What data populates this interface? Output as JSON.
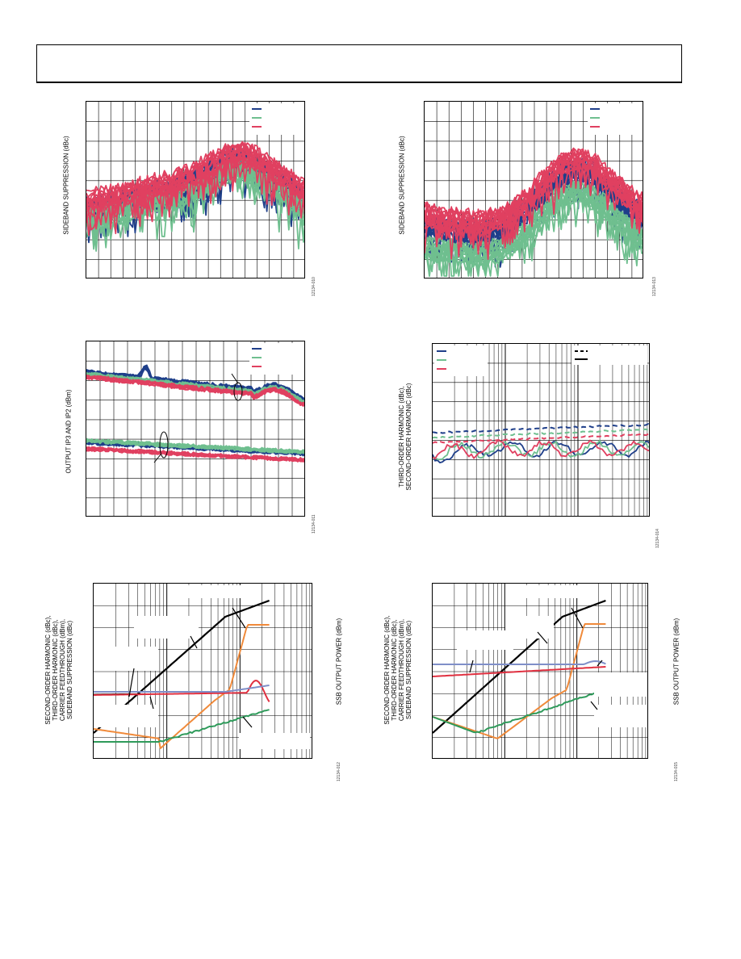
{
  "chart_data": [
    {
      "type": "line",
      "ylabel": "SIDEBAND SUPPRESSION (dBc)",
      "figure_id": "12134-010",
      "series_colors": [
        "#1f3f8a",
        "#6fbf8f",
        "#e04060"
      ]
    },
    {
      "type": "line",
      "ylabel": "SIDEBAND SUPPRESSION (dBc)",
      "figure_id": "12134-013",
      "series_colors": [
        "#1f3f8a",
        "#6fbf8f",
        "#e04060"
      ]
    },
    {
      "type": "line",
      "ylabel": "OUTPUT IP3 AND IP2 (dBm)",
      "figure_id": "12134-011",
      "series_colors": [
        "#1f3f8a",
        "#6fbf8f",
        "#e04060"
      ]
    },
    {
      "type": "line",
      "ylabel": "THIRD-ORDER HARMONIC (dBc),\nSECOND-ORDER HARMONIC (dBc)",
      "figure_id": "12134-014",
      "series_colors": [
        "#1f3f8a",
        "#6fbf8f",
        "#e04060"
      ]
    },
    {
      "type": "line",
      "ylabel": "SECOND-ORDER HARMONIC (dBc),\nTHIRD-ORDER HARMONIC (dBc),\nCARRIER FEEDTHROUGH (dBm),\nSIDEBAND SUPPRESSION (dBc)",
      "y2label": "SSB OUTPUT POWER (dBm)",
      "figure_id": "12134-012",
      "series_colors": [
        "#000000",
        "#f08a3a",
        "#2e9a5a",
        "#e03040",
        "#7f8fc8"
      ]
    },
    {
      "type": "line",
      "ylabel": "SECOND-ORDER HARMONIC (dBc),\nTHIRD-ORDER HARMONIC (dBc),\nCARRIER FEEDTHROUGH (dBm),\nSIDEBAND SUPPRESSION (dBc)",
      "y2label": "SSB OUTPUT POWER (dBm)",
      "figure_id": "12134-015",
      "series_colors": [
        "#000000",
        "#f08a3a",
        "#2e9a5a",
        "#e03040",
        "#7f8fc8"
      ]
    }
  ]
}
